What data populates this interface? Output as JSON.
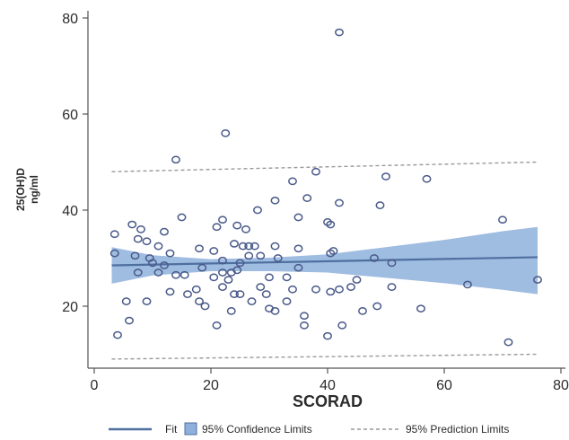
{
  "chart_data": {
    "type": "scatter",
    "xlabel": "SCORAD",
    "ylabel_line1": "25(OH)D",
    "ylabel_line2": "ng/ml",
    "xlim": [
      0,
      80
    ],
    "ylim": [
      8,
      82
    ],
    "xticks": [
      0,
      20,
      40,
      60,
      80
    ],
    "yticks": [
      20,
      40,
      60,
      80
    ],
    "xtick_labels": [
      "0",
      "20",
      "40",
      "60",
      "80"
    ],
    "ytick_labels": [
      "20",
      "40",
      "60",
      "80"
    ],
    "grid": false,
    "legend_position": "bottom",
    "colors": {
      "point_stroke": "#4a5a8a",
      "fit_line": "#4f6f9f",
      "confidence_band": "#8eb0dc",
      "prediction_line": "#9a9a9a",
      "axis": "#555555"
    },
    "points": [
      [
        42,
        77
      ],
      [
        22.5,
        56
      ],
      [
        14,
        50.5
      ],
      [
        38,
        48
      ],
      [
        50,
        47
      ],
      [
        57,
        46.5
      ],
      [
        34,
        46
      ],
      [
        36.5,
        42.5
      ],
      [
        31,
        42
      ],
      [
        42,
        41.5
      ],
      [
        49,
        41
      ],
      [
        28,
        40
      ],
      [
        22,
        38
      ],
      [
        35,
        38.5
      ],
      [
        15,
        38.5
      ],
      [
        40,
        37.5
      ],
      [
        40.5,
        37
      ],
      [
        70,
        38
      ],
      [
        6.5,
        37
      ],
      [
        8,
        36
      ],
      [
        24.5,
        36.8
      ],
      [
        21,
        36.5
      ],
      [
        26,
        36
      ],
      [
        3.5,
        35
      ],
      [
        12,
        35.5
      ],
      [
        7.5,
        34
      ],
      [
        9,
        33.5
      ],
      [
        24,
        33
      ],
      [
        25.5,
        32.5
      ],
      [
        26.5,
        32.5
      ],
      [
        27.5,
        32.5
      ],
      [
        31,
        32.5
      ],
      [
        11,
        32.5
      ],
      [
        18,
        32
      ],
      [
        20.5,
        31.5
      ],
      [
        35,
        32
      ],
      [
        40.5,
        31
      ],
      [
        41,
        31.5
      ],
      [
        9.5,
        30
      ],
      [
        7,
        30.5
      ],
      [
        3.5,
        31
      ],
      [
        13,
        31
      ],
      [
        26.5,
        30.5
      ],
      [
        28.5,
        30.5
      ],
      [
        31.5,
        30
      ],
      [
        48,
        30
      ],
      [
        10,
        29
      ],
      [
        22,
        29.5
      ],
      [
        25,
        29
      ],
      [
        12,
        28.5
      ],
      [
        18.5,
        28
      ],
      [
        24.5,
        27.5
      ],
      [
        35,
        28
      ],
      [
        51,
        29
      ],
      [
        7.5,
        27
      ],
      [
        11,
        27
      ],
      [
        14,
        26.5
      ],
      [
        15.5,
        26.5
      ],
      [
        22,
        27
      ],
      [
        23.5,
        27
      ],
      [
        20.5,
        26
      ],
      [
        23,
        25.5
      ],
      [
        30,
        26
      ],
      [
        33,
        26
      ],
      [
        45,
        25.5
      ],
      [
        76,
        25.5
      ],
      [
        64,
        24.5
      ],
      [
        13,
        23
      ],
      [
        16,
        22.5
      ],
      [
        24,
        22.5
      ],
      [
        25,
        22.5
      ],
      [
        28.5,
        24
      ],
      [
        29.5,
        22.5
      ],
      [
        34,
        23.5
      ],
      [
        38,
        23.5
      ],
      [
        40.5,
        23
      ],
      [
        42,
        23.5
      ],
      [
        44,
        24
      ],
      [
        51,
        24
      ],
      [
        5.5,
        21
      ],
      [
        9,
        21
      ],
      [
        18,
        21
      ],
      [
        27,
        21
      ],
      [
        33,
        21
      ],
      [
        30,
        19.5
      ],
      [
        31,
        19
      ],
      [
        36,
        18
      ],
      [
        46,
        19
      ],
      [
        48.5,
        20
      ],
      [
        56,
        19.5
      ],
      [
        19,
        20
      ],
      [
        23.5,
        19
      ],
      [
        6,
        17
      ],
      [
        21,
        16
      ],
      [
        36,
        16
      ],
      [
        42.5,
        16
      ],
      [
        4,
        14
      ],
      [
        40,
        13.8
      ],
      [
        71,
        12.5
      ],
      [
        17.5,
        23.5
      ],
      [
        22,
        24
      ]
    ],
    "fit": {
      "x": [
        3,
        76
      ],
      "y": [
        28.5,
        30.2
      ]
    },
    "confidence_band": {
      "x": [
        3,
        10,
        20,
        30,
        40,
        50,
        60,
        70,
        76
      ],
      "lower": [
        24.7,
        26.4,
        27.3,
        27.3,
        27.0,
        25.9,
        24.8,
        23.4,
        22.5
      ],
      "upper": [
        32.3,
        30.6,
        29.8,
        30.1,
        30.8,
        32.3,
        33.8,
        35.6,
        36.5
      ]
    },
    "prediction_upper": {
      "x": [
        3,
        76
      ],
      "y": [
        48,
        50
      ]
    },
    "prediction_lower": {
      "x": [
        3,
        76
      ],
      "y": [
        9,
        10
      ]
    },
    "legend": {
      "fit": "Fit",
      "confidence": "95% Confidence Limits",
      "prediction": "95% Prediction Limits"
    }
  }
}
